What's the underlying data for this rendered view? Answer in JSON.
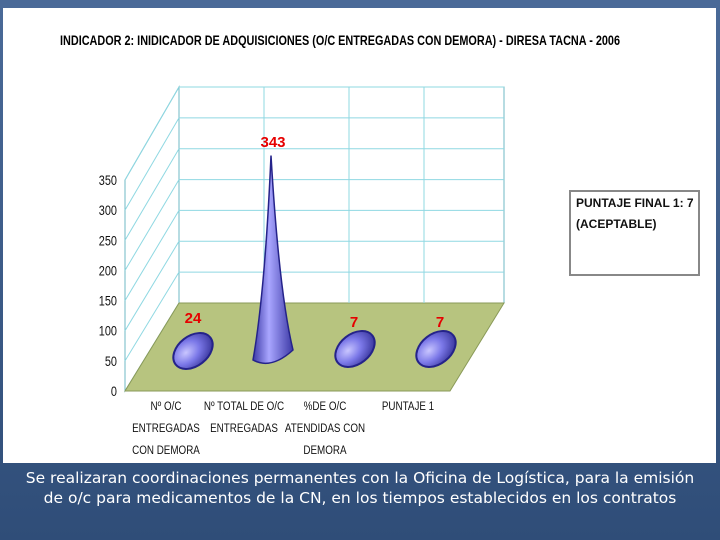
{
  "chart_data": {
    "type": "bar",
    "style": "3d-cone",
    "title": "INDICADOR 2: INIDICADOR DE ADQUISICIONES (O/C ENTREGADAS CON DEMORA) - DIRESA TACNA - 2006",
    "categories": [
      [
        "Nº O/C",
        "ENTREGADAS",
        "CON DEMORA"
      ],
      [
        "Nº TOTAL DE O/C",
        "ENTREGADAS"
      ],
      [
        "%DE O/C",
        "ATENDIDAS CON",
        "DEMORA"
      ],
      [
        "PUNTAJE 1"
      ]
    ],
    "values": [
      24,
      343,
      7,
      7
    ],
    "data_labels": [
      "24",
      "343",
      "7",
      "7"
    ],
    "yticks": [
      "0",
      "50",
      "100",
      "150",
      "200",
      "250",
      "300",
      "350"
    ],
    "ylim": [
      0,
      350
    ],
    "grid": true,
    "annotation": [
      "PUNTAJE FINAL 1: 7",
      "(ACEPTABLE)"
    ],
    "colors": {
      "cone": "#7b78e8",
      "cone_dark": "#3f3ca8",
      "floor": "#b7c47f",
      "wall_grid": "#9fe0e8",
      "label": "#e60000"
    }
  },
  "caption": "Se realizaran  coordinaciones permanentes con la Oficina de Logística, para la emisión de o/c para medicamentos de la CN, en los tiempos establecidos en los contratos"
}
